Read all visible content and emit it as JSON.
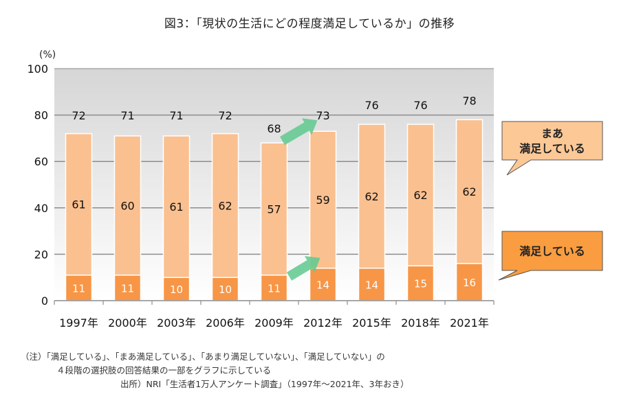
{
  "title": "図3：「現状の生活にどの程度満足しているか」の推移",
  "notes": {
    "line1": "（注）「満足している」、「まあ満足している」、「あまり満足していない」、「満足していない」の",
    "line2": "４段階の選択肢の回答結果の一部をグラフに示している",
    "source": "出所）NRI「生活者1万人アンケート調査」（1997年～2021年、3年おき）"
  },
  "chart_data": {
    "type": "bar",
    "stacked": true,
    "title": "図3：「現状の生活にどの程度満足しているか」の推移",
    "xlabel": "",
    "ylabel": "(%)",
    "ylim": [
      0,
      100
    ],
    "yticks": [
      0,
      20,
      40,
      60,
      80,
      100
    ],
    "grid": true,
    "categories": [
      "1997年",
      "2000年",
      "2003年",
      "2006年",
      "2009年",
      "2012年",
      "2015年",
      "2018年",
      "2021年"
    ],
    "series": [
      {
        "name": "満足している",
        "color": "#f79646",
        "label_color": "#ffffff",
        "values": [
          11,
          11,
          10,
          10,
          11,
          14,
          14,
          15,
          16
        ]
      },
      {
        "name": "まあ満足している",
        "color": "#fac090",
        "label_color": "#111111",
        "values": [
          61,
          60,
          61,
          62,
          57,
          59,
          62,
          62,
          62
        ]
      }
    ],
    "totals": [
      72,
      71,
      71,
      72,
      68,
      73,
      76,
      76,
      78
    ],
    "legend": [
      {
        "text_lines": [
          "まあ",
          "満足している"
        ],
        "series": "まあ満足している",
        "placement": "right-upper",
        "fill": "#fcc896"
      },
      {
        "text_lines": [
          "満足している"
        ],
        "series": "満足している",
        "placement": "right-lower",
        "fill": "#f99d40"
      }
    ],
    "annotations": [
      {
        "type": "arrow",
        "from_category": "2009年",
        "to_category": "2012年",
        "level": "total",
        "color": "#5ec98e"
      },
      {
        "type": "arrow",
        "from_category": "2009年",
        "to_category": "2012年",
        "level": "満足している",
        "color": "#5ec98e"
      }
    ]
  }
}
